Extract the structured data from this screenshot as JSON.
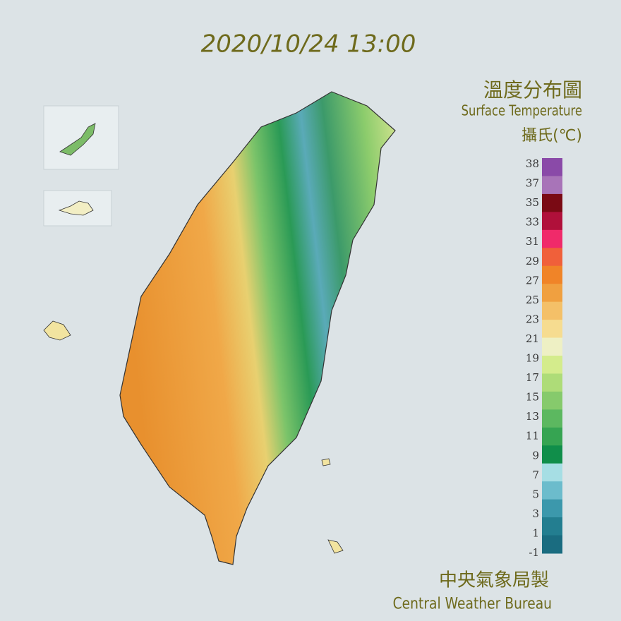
{
  "timestamp": "2020/10/24 13:00",
  "title": "溫度分布圖",
  "subtitle": "Surface Temperature",
  "unit": "攝氏(℃)",
  "legend": {
    "labels": [
      38,
      37,
      35,
      33,
      31,
      29,
      27,
      25,
      23,
      21,
      19,
      17,
      15,
      13,
      11,
      9,
      7,
      5,
      3,
      1,
      -1
    ],
    "colors": [
      "#8a4aa8",
      "#a874b8",
      "#7a0a14",
      "#b0103a",
      "#f02a6a",
      "#f0603a",
      "#f08428",
      "#f0a040",
      "#f4c068",
      "#f6dc90",
      "#eef0c4",
      "#d4ec8c",
      "#aedc78",
      "#86ca6c",
      "#5cb860",
      "#36a452",
      "#108e4a",
      "#a6dee4",
      "#6cbccc",
      "#3c98ac",
      "#237e90",
      "#1a6c80"
    ]
  },
  "footer": {
    "chinese": "中央氣象局製",
    "english": "Central Weather Bureau"
  }
}
